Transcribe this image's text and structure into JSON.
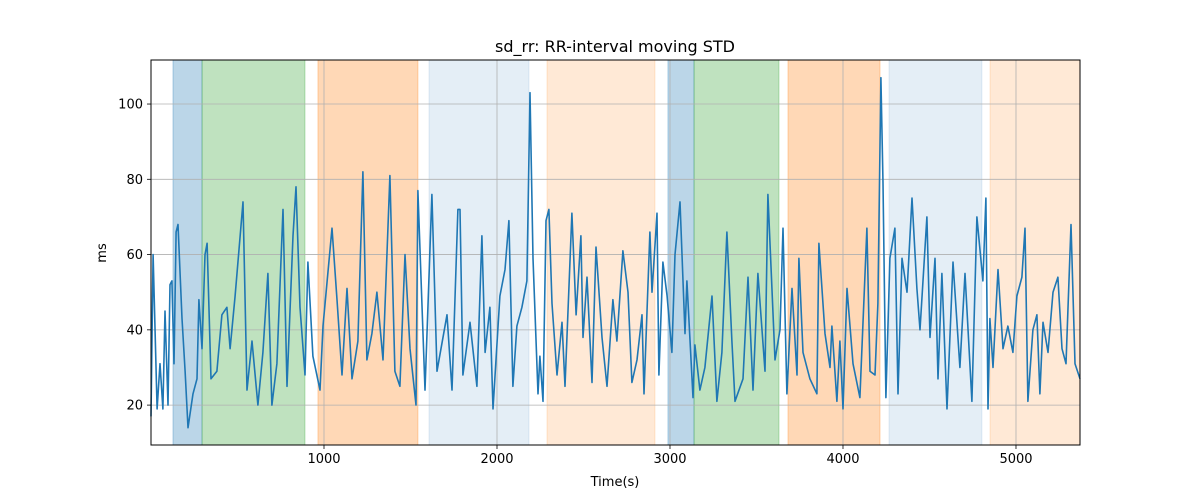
{
  "chart_data": {
    "type": "line",
    "title": "sd_rr: RR-interval moving STD",
    "xlabel": "Time(s)",
    "ylabel": "ms",
    "xlim": [
      0,
      5370
    ],
    "ylim": [
      9.4,
      111.7
    ],
    "xticks": [
      1000,
      2000,
      3000,
      4000,
      5000
    ],
    "yticks": [
      20,
      40,
      60,
      80,
      100
    ],
    "grid": true,
    "line_color": "#1f77b4",
    "spans": [
      {
        "start": 127,
        "end": 295,
        "color": "#1f77b4",
        "alpha": 0.3
      },
      {
        "start": 295,
        "end": 890,
        "color": "#2ca02c",
        "alpha": 0.3
      },
      {
        "start": 965,
        "end": 1543,
        "color": "#ff7f0e",
        "alpha": 0.3
      },
      {
        "start": 1607,
        "end": 2185,
        "color": "#1f77b4",
        "alpha": 0.12
      },
      {
        "start": 2289,
        "end": 2913,
        "color": "#ff7f0e",
        "alpha": 0.17
      },
      {
        "start": 2988,
        "end": 3139,
        "color": "#1f77b4",
        "alpha": 0.3
      },
      {
        "start": 3139,
        "end": 3630,
        "color": "#2ca02c",
        "alpha": 0.3
      },
      {
        "start": 3682,
        "end": 4214,
        "color": "#ff7f0e",
        "alpha": 0.3
      },
      {
        "start": 4266,
        "end": 4803,
        "color": "#1f77b4",
        "alpha": 0.12
      },
      {
        "start": 4850,
        "end": 5370,
        "color": "#ff7f0e",
        "alpha": 0.17
      }
    ],
    "series": [
      {
        "name": "sd_rr",
        "x": [
          0,
          12,
          35,
          52,
          69,
          81,
          98,
          110,
          121,
          133,
          145,
          156,
          179,
          197,
          214,
          243,
          266,
          277,
          295,
          312,
          324,
          347,
          381,
          410,
          439,
          457,
          486,
          532,
          555,
          584,
          618,
          647,
          676,
          699,
          728,
          763,
          786,
          821,
          838,
          861,
          890,
          907,
          936,
          977,
          994,
          1046,
          1075,
          1104,
          1133,
          1162,
          1196,
          1225,
          1248,
          1277,
          1306,
          1341,
          1381,
          1410,
          1439,
          1468,
          1497,
          1532,
          1543,
          1584,
          1624,
          1653,
          1711,
          1740,
          1774,
          1786,
          1803,
          1844,
          1884,
          1913,
          1931,
          1959,
          1977,
          2017,
          2046,
          2069,
          2092,
          2115,
          2144,
          2173,
          2191,
          2208,
          2237,
          2248,
          2266,
          2283,
          2300,
          2318,
          2347,
          2376,
          2393,
          2433,
          2457,
          2485,
          2497,
          2520,
          2549,
          2572,
          2607,
          2636,
          2670,
          2693,
          2728,
          2757,
          2780,
          2809,
          2838,
          2850,
          2884,
          2896,
          2925,
          2936,
          2959,
          2983,
          3011,
          3029,
          3058,
          3087,
          3098,
          3133,
          3144,
          3173,
          3202,
          3243,
          3271,
          3300,
          3329,
          3358,
          3376,
          3422,
          3451,
          3480,
          3508,
          3549,
          3566,
          3607,
          3636,
          3653,
          3676,
          3705,
          3734,
          3745,
          3769,
          3809,
          3849,
          3861,
          3896,
          3925,
          3936,
          3965,
          3982,
          4000,
          4023,
          4058,
          4098,
          4138,
          4156,
          4185,
          4202,
          4219,
          4231,
          4248,
          4271,
          4300,
          4318,
          4341,
          4370,
          4399,
          4427,
          4445,
          4485,
          4503,
          4532,
          4549,
          4572,
          4601,
          4636,
          4676,
          4705,
          4745,
          4774,
          4809,
          4826,
          4838,
          4849,
          4867,
          4896,
          4925,
          4953,
          4982,
          5005,
          5034,
          5052,
          5069,
          5098,
          5121,
          5138,
          5156,
          5185,
          5214,
          5242,
          5266,
          5289,
          5318,
          5341,
          5370
        ],
        "y": [
          17,
          60,
          19,
          31,
          19,
          45,
          20,
          52,
          53,
          31,
          66,
          68,
          43,
          29,
          14,
          23,
          27,
          48,
          35,
          60,
          63,
          27,
          29,
          44,
          46,
          35,
          49,
          74,
          24,
          37,
          20,
          34,
          55,
          20,
          31,
          72,
          25,
          65,
          78,
          46,
          28,
          58,
          33,
          24,
          41,
          67,
          48,
          28,
          51,
          27,
          37,
          82,
          32,
          39,
          50,
          32,
          81,
          29,
          25,
          60,
          35,
          20,
          77,
          24,
          76,
          29,
          44,
          24,
          72,
          72,
          28,
          42,
          25,
          65,
          34,
          46,
          19,
          49,
          56,
          69,
          25,
          41,
          46,
          53,
          103,
          59,
          23,
          33,
          21,
          69,
          72,
          47,
          28,
          42,
          25,
          71,
          44,
          65,
          38,
          54,
          26,
          62,
          38,
          25,
          48,
          37,
          61,
          50,
          26,
          32,
          44,
          23,
          66,
          50,
          71,
          28,
          58,
          49,
          34,
          60,
          74,
          39,
          53,
          22,
          36,
          24,
          30,
          49,
          21,
          34,
          66,
          37,
          21,
          27,
          54,
          24,
          55,
          29,
          76,
          32,
          40,
          67,
          23,
          51,
          28,
          59,
          34,
          27,
          23,
          63,
          39,
          30,
          41,
          21,
          37,
          19,
          51,
          31,
          22,
          67,
          29,
          28,
          47,
          107,
          79,
          22,
          59,
          67,
          23,
          59,
          50,
          75,
          51,
          40,
          70,
          38,
          59,
          27,
          55,
          19,
          58,
          30,
          55,
          21,
          70,
          53,
          75,
          19,
          43,
          30,
          56,
          35,
          41,
          34,
          49,
          54,
          67,
          21,
          40,
          44,
          23,
          42,
          34,
          50,
          54,
          35,
          31,
          68,
          31,
          27
        ]
      }
    ]
  }
}
